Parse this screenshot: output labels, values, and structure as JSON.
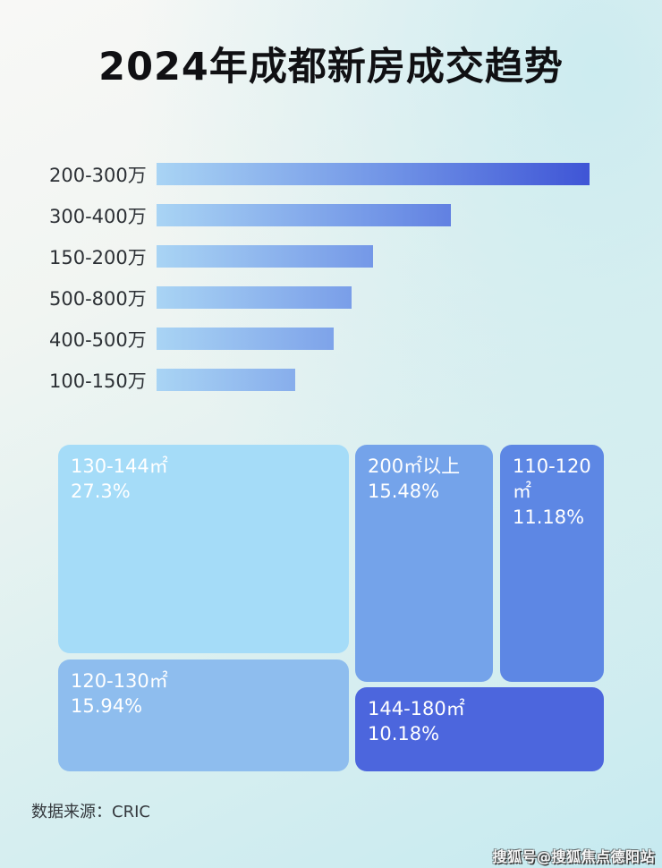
{
  "page": {
    "title": "2024年成都新房成交趋势",
    "source_label": "数据来源：CRIC",
    "watermark": "搜狐号@搜狐焦点德阳站"
  },
  "colors": {
    "background_top_left": "#f8f8f6",
    "background_bottom_right": "#c6eaf0",
    "bar_gradient_start": "#a9d4f4",
    "bar_gradient_end": "#3f55d6",
    "title_color": "#101013",
    "bar_label_color": "#2c3035",
    "treemap_text_color": "#ffffff"
  },
  "chart_data": [
    {
      "type": "bar",
      "orientation": "horizontal",
      "title": "2024年成都新房成交趋势",
      "categories": [
        "200-300万",
        "300-400万",
        "150-200万",
        "500-800万",
        "400-500万",
        "100-150万"
      ],
      "values_relative_pct": [
        100,
        68,
        50,
        45,
        41,
        32
      ],
      "xlabel": "",
      "ylabel": "",
      "grid": false,
      "legend": false,
      "note": "no numeric axis shown; values are bar lengths relative to longest bar (200-300万 = 100)"
    },
    {
      "type": "treemap",
      "items": [
        {
          "label": "130-144㎡",
          "value_pct": 27.3,
          "value_text": "27.3%",
          "color": "#a5dcf8"
        },
        {
          "label": "120-130㎡",
          "value_pct": 15.94,
          "value_text": "15.94%",
          "color": "#8ebdee"
        },
        {
          "label": "200㎡以上",
          "value_pct": 15.48,
          "value_text": "15.48%",
          "color": "#74a3ea"
        },
        {
          "label": "110-120㎡",
          "value_pct": 11.18,
          "value_text": "11.18%",
          "color": "#5d87e4"
        },
        {
          "label": "144-180㎡",
          "value_pct": 10.18,
          "value_text": "10.18%",
          "color": "#4c66dd"
        }
      ]
    }
  ]
}
